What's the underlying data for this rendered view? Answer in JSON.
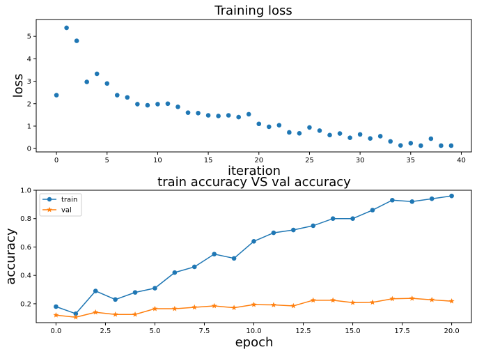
{
  "chart_data": [
    {
      "type": "scatter",
      "title": "Training loss",
      "xlabel": "iteration",
      "ylabel": "loss",
      "xlim": [
        -2,
        41
      ],
      "ylim": [
        -0.15,
        5.75
      ],
      "xticks": [
        0,
        5,
        10,
        15,
        20,
        25,
        30,
        35,
        40
      ],
      "yticks": [
        0,
        1,
        2,
        3,
        4,
        5
      ],
      "grid": false,
      "color": "#1f77b4",
      "x": [
        0,
        1,
        2,
        3,
        4,
        5,
        6,
        7,
        8,
        9,
        10,
        11,
        12,
        13,
        14,
        15,
        16,
        17,
        18,
        19,
        20,
        21,
        22,
        23,
        24,
        25,
        26,
        27,
        28,
        29,
        30,
        31,
        32,
        33,
        34,
        35,
        36,
        37,
        38,
        39
      ],
      "y": [
        2.38,
        5.38,
        4.8,
        2.97,
        3.33,
        2.9,
        2.38,
        2.28,
        1.98,
        1.93,
        1.98,
        2.0,
        1.86,
        1.6,
        1.58,
        1.48,
        1.45,
        1.48,
        1.4,
        1.53,
        1.1,
        0.97,
        1.04,
        0.72,
        0.68,
        0.94,
        0.8,
        0.6,
        0.67,
        0.48,
        0.63,
        0.45,
        0.55,
        0.32,
        0.14,
        0.24,
        0.13,
        0.44,
        0.13,
        0.13
      ]
    },
    {
      "type": "line",
      "title": "train accuracy VS val accuracy",
      "xlabel": "epoch",
      "ylabel": "accuracy",
      "xlim": [
        -1,
        21
      ],
      "ylim": [
        0.067,
        1.0
      ],
      "xticks": [
        "0.0",
        "2.5",
        "5.0",
        "7.5",
        "10.0",
        "12.5",
        "15.0",
        "17.5",
        "20.0"
      ],
      "yticks": [
        "0.2",
        "0.4",
        "0.6",
        "0.8",
        "1.0"
      ],
      "grid": false,
      "legend": "top-left",
      "x": [
        0,
        1,
        2,
        3,
        4,
        5,
        6,
        7,
        8,
        9,
        10,
        11,
        12,
        13,
        14,
        15,
        16,
        17,
        18,
        19,
        20
      ],
      "series": [
        {
          "name": "train",
          "color": "#1f77b4",
          "marker": "circle",
          "values": [
            0.18,
            0.13,
            0.29,
            0.23,
            0.28,
            0.31,
            0.42,
            0.46,
            0.55,
            0.52,
            0.64,
            0.7,
            0.72,
            0.75,
            0.8,
            0.8,
            0.86,
            0.93,
            0.92,
            0.94,
            0.96
          ]
        },
        {
          "name": "val",
          "color": "#ff7f0e",
          "marker": "star",
          "values": [
            0.12,
            0.105,
            0.14,
            0.125,
            0.125,
            0.165,
            0.165,
            0.175,
            0.185,
            0.172,
            0.194,
            0.192,
            0.185,
            0.225,
            0.225,
            0.208,
            0.21,
            0.235,
            0.238,
            0.228,
            0.218
          ]
        }
      ]
    }
  ]
}
